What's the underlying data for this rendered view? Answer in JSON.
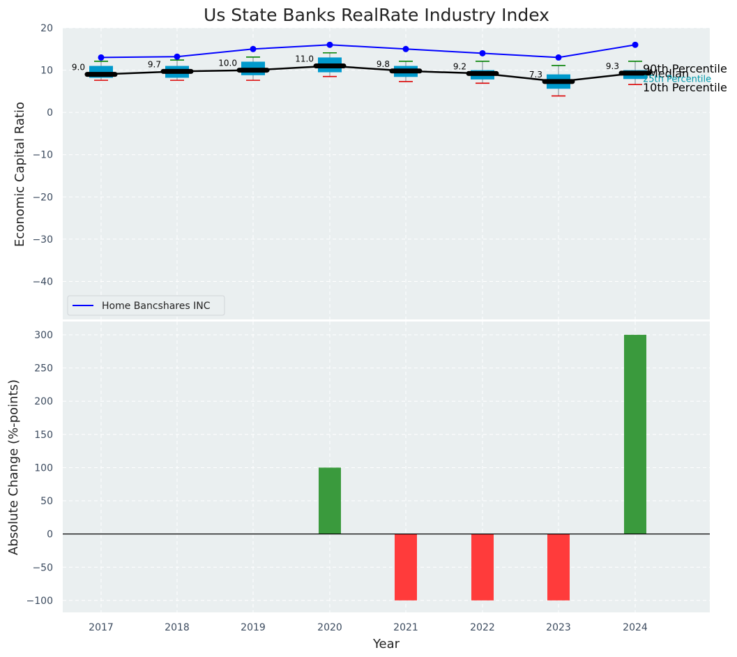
{
  "chart_data": [
    {
      "type": "line",
      "title": "Us State Banks RealRate Industry Index",
      "ylabel": "Economic Capital Ratio",
      "ylim": [
        -49,
        20
      ],
      "yticks": [
        20,
        10,
        0,
        -10,
        -20,
        -30,
        -40
      ],
      "categories": [
        "2017",
        "2018",
        "2019",
        "2020",
        "2021",
        "2022",
        "2023",
        "2024"
      ],
      "box_stats": [
        {
          "p10": 7.6,
          "p25": 8.2,
          "p75": 11.0,
          "p90": 12.1
        },
        {
          "p10": 7.6,
          "p25": 8.2,
          "p75": 11.0,
          "p90": 12.4
        },
        {
          "p10": 7.6,
          "p25": 8.8,
          "p75": 12.0,
          "p90": 13.1
        },
        {
          "p10": 8.5,
          "p25": 9.5,
          "p75": 13.0,
          "p90": 14.1
        },
        {
          "p10": 7.3,
          "p25": 8.4,
          "p75": 11.0,
          "p90": 12.1
        },
        {
          "p10": 6.9,
          "p25": 7.8,
          "p75": 10.0,
          "p90": 12.1
        },
        {
          "p10": 3.9,
          "p25": 5.6,
          "p75": 9.0,
          "p90": 11.1
        },
        {
          "p10": 6.6,
          "p25": 7.9,
          "p75": 10.0,
          "p90": 12.1
        }
      ],
      "series": [
        {
          "name": "Home Bancshares INC",
          "values": [
            13,
            13.2,
            15,
            16,
            15,
            14,
            13,
            16
          ],
          "color": "#0000ff"
        },
        {
          "name": "Median",
          "values": [
            9.0,
            9.7,
            10.0,
            11.0,
            9.8,
            9.2,
            7.3,
            9.3
          ],
          "color": "#000000"
        }
      ],
      "median_labels": [
        "9.0",
        "9.7",
        "10.0",
        "11.0",
        "9.8",
        "9.2",
        "7.3",
        "9.3"
      ],
      "annotations": [
        "90th Percentile",
        "Median",
        "25th Percentile",
        "10th Percentile"
      ],
      "legend": [
        "Home Bancshares INC"
      ],
      "legend_position": "lower-left",
      "grid": true
    },
    {
      "type": "bar",
      "xlabel": "Year",
      "ylabel": "Absolute Change (%-points)",
      "ylim": [
        -118,
        320
      ],
      "yticks": [
        300,
        250,
        200,
        150,
        100,
        50,
        0,
        -50,
        -100
      ],
      "categories": [
        "2017",
        "2018",
        "2019",
        "2020",
        "2021",
        "2022",
        "2023",
        "2024"
      ],
      "values": [
        0,
        0,
        0,
        100,
        -100,
        -100,
        -100,
        300
      ],
      "colors": {
        "positive": "#3a9a3d",
        "negative": "#ff3b3b"
      },
      "grid": true
    }
  ],
  "colors": {
    "panel_bg": "#eaeff0",
    "grid": "#ffffff",
    "tick_text": "#3b4a5e",
    "box_fill": "#0099cc",
    "whisker_high": "#008000",
    "whisker_low": "#dd0000",
    "annotation_25": "#0099aa"
  }
}
